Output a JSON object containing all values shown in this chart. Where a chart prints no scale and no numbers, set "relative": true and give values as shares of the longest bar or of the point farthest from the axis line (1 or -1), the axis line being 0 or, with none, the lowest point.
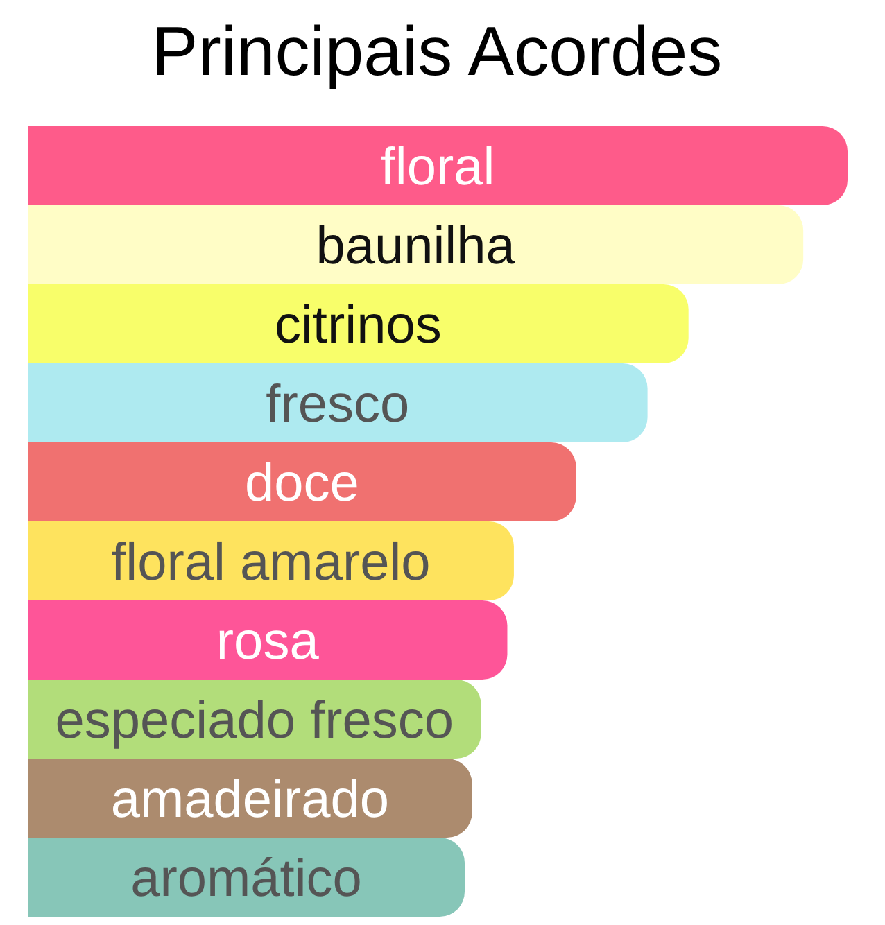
{
  "chart_data": {
    "type": "bar",
    "orientation": "horizontal",
    "relative": true,
    "title": "Principais Acordes",
    "categories": [
      "floral",
      "baunilha",
      "citrinos",
      "fresco",
      "doce",
      "floral amarelo",
      "rosa",
      "especiado fresco",
      "amadeirado",
      "aromático"
    ],
    "values": [
      1,
      0.946,
      0.806,
      0.756,
      0.669,
      0.593,
      0.585,
      0.553,
      0.542,
      0.533
    ],
    "colors": [
      "#fe5b8a",
      "#fffdc6",
      "#f8fe6a",
      "#aeeaf0",
      "#f07170",
      "#fee35e",
      "#fe5598",
      "#b2dd7a",
      "#ac8b6e",
      "#87c6b8"
    ],
    "tick_labels": "y"
  }
}
